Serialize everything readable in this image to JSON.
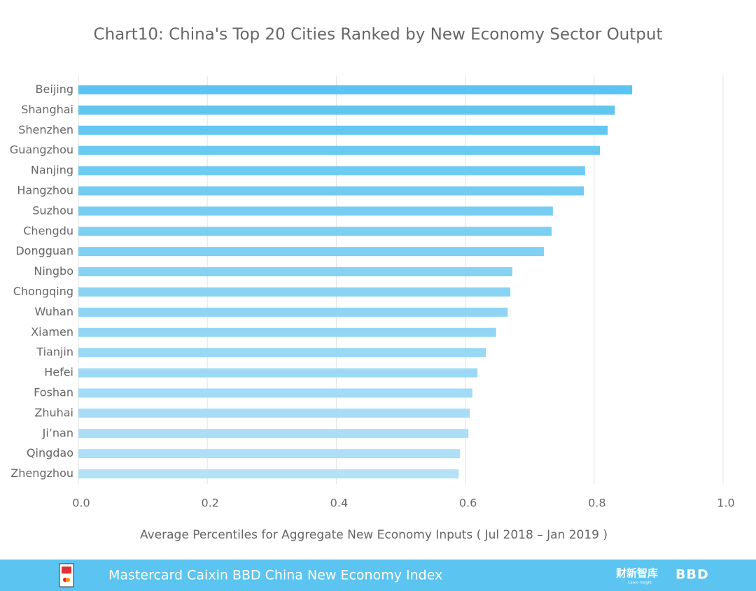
{
  "chart_data": {
    "type": "barh",
    "title": "Chart10:  China's Top 20 Cities Ranked by New Economy Sector Output",
    "x_label": "Average Percentiles for Aggregate New Economy Inputs ( Jul 2018 – Jan 2019 )",
    "categories": [
      "Beijing",
      "Shanghai",
      "Shenzhen",
      "Guangzhou",
      "Nanjing",
      "Hangzhou",
      "Suzhou",
      "Chengdu",
      "Dongguan",
      "Ningbo",
      "Chongqing",
      "Wuhan",
      "Xiamen",
      "Tianjin",
      "Hefei",
      "Foshan",
      "Zhuhai",
      "Ji’nan",
      "Qingdao",
      "Zhengzhou"
    ],
    "values": [
      0.859,
      0.832,
      0.821,
      0.809,
      0.786,
      0.784,
      0.736,
      0.734,
      0.722,
      0.673,
      0.67,
      0.666,
      0.648,
      0.632,
      0.619,
      0.611,
      0.607,
      0.605,
      0.592,
      0.59
    ],
    "gradient": [
      "#5bc4f0",
      "#b4e1f6"
    ],
    "xlim": [
      0,
      1
    ],
    "xticks": [
      {
        "value": 0,
        "label": "0.0"
      },
      0.2,
      0.4,
      0.6,
      0.8,
      {
        "value": 1,
        "label": "1.0"
      }
    ],
    "grid": true
  },
  "footer": {
    "title": "Mastercard Caixin BBD China New Economy Index",
    "logo_cn": "财新智库",
    "logo_cn_sub": "Caixin Insight",
    "logo_bbd": "BBD"
  }
}
